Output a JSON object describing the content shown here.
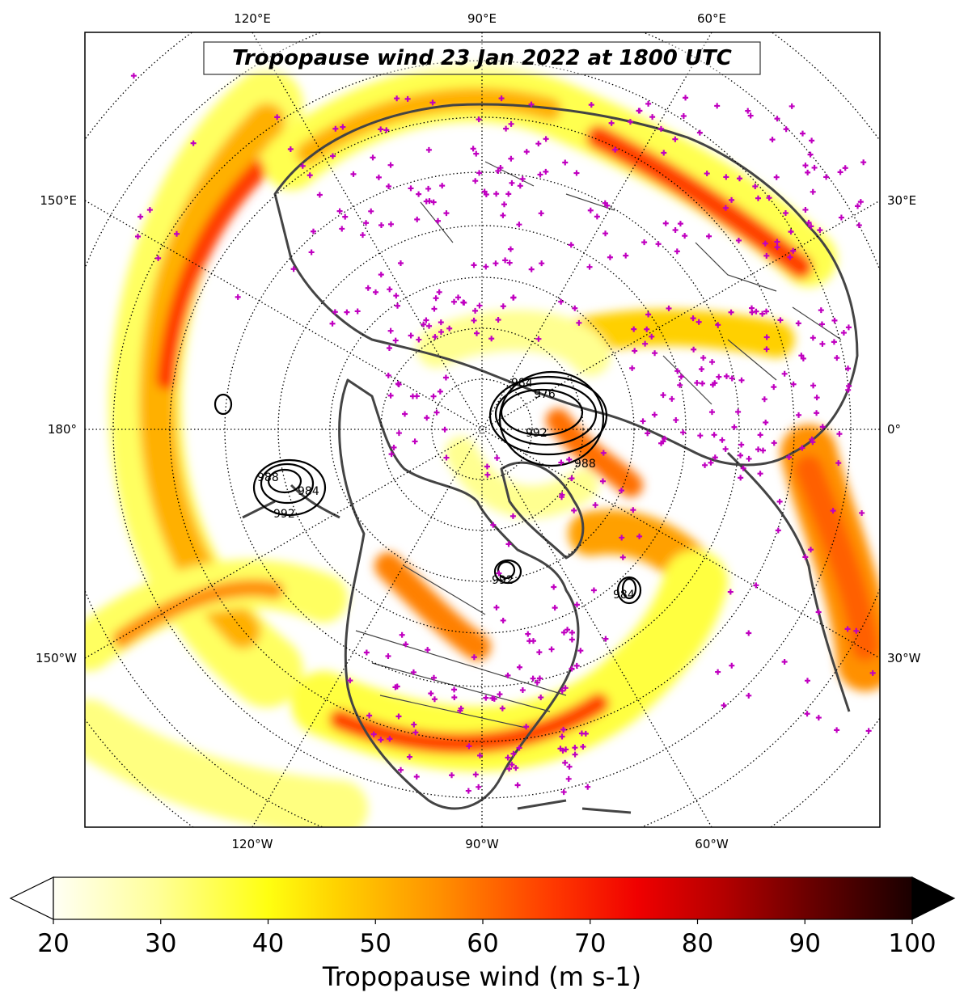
{
  "title": "Tropopause wind 23 Jan 2022 at 1800 UTC",
  "meridian_labels": {
    "top": [
      "120°E",
      "90°E",
      "60°E"
    ],
    "bottom": [
      "120°W",
      "90°W",
      "60°W"
    ],
    "left": [
      "150°E",
      "180°",
      "150°W"
    ],
    "right": [
      "30°E",
      "0°",
      "30°W"
    ]
  },
  "colorbar": {
    "label": "Tropopause wind (m s-1)",
    "ticks": [
      "20",
      "30",
      "40",
      "50",
      "60",
      "70",
      "80",
      "90",
      "100"
    ],
    "min": 20,
    "max": 100,
    "extend": "both",
    "colormap": "hot_r"
  },
  "contour_labels": [
    "984",
    "976",
    "992",
    "988",
    "988",
    "984",
    "992",
    "992",
    "984"
  ],
  "colors": {
    "station_marker": "#c000c0",
    "coastline": "#444444",
    "contour": "#000000"
  }
}
